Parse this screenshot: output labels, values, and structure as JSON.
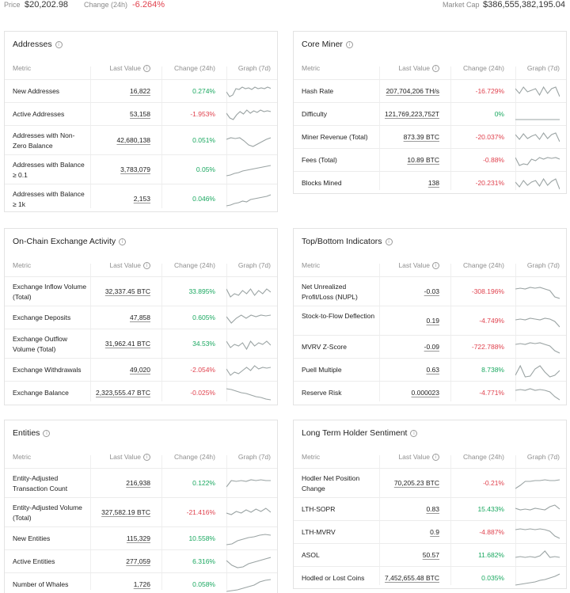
{
  "topbar": {
    "price_label": "Price",
    "price_value": "$20,202.98",
    "change_label": "Change (24h)",
    "change_value": "-6.264%",
    "marketcap_label": "Market Cap",
    "marketcap_value": "$386,555,382,195.04"
  },
  "headers": {
    "metric": "Metric",
    "last_value": "Last Value",
    "change": "Change (24h)",
    "graph": "Graph (7d)"
  },
  "colors": {
    "positive": "#1aa860",
    "negative": "#e0424e",
    "spark": "#9aa3a3"
  },
  "cards": {
    "addresses": {
      "title": "Addresses",
      "rows": [
        {
          "metric": "New Addresses",
          "value": "16,822",
          "change": "0.274%",
          "dir": "pos",
          "spark": "a1"
        },
        {
          "metric": "Active Addresses",
          "value": "53,158",
          "change": "-1.953%",
          "dir": "neg",
          "spark": "a2"
        },
        {
          "metric": "Addresses with Non-Zero Balance",
          "value": "42,680,138",
          "change": "0.051%",
          "dir": "pos",
          "spark": "a3"
        },
        {
          "metric": "Addresses with Balance ≥ 0.1",
          "value": "3,783,079",
          "change": "0.05%",
          "dir": "pos",
          "spark": "a4"
        },
        {
          "metric": "Addresses with Balance ≥ 1k",
          "value": "2,153",
          "change": "0.046%",
          "dir": "pos",
          "spark": "a5"
        }
      ]
    },
    "core_miner": {
      "title": "Core Miner",
      "rows": [
        {
          "metric": "Hash Rate",
          "value": "207,704,206 TH/s",
          "change": "-16.729%",
          "dir": "neg",
          "spark": "b1"
        },
        {
          "metric": "Difficulty",
          "value": "121,769,223,752T",
          "change": "0%",
          "dir": "pos",
          "spark": "b2"
        },
        {
          "metric": "Miner Revenue (Total)",
          "value": "873.39 BTC",
          "change": "-20.037%",
          "dir": "neg",
          "spark": "b3"
        },
        {
          "metric": "Fees (Total)",
          "value": "10.89 BTC",
          "change": "-0.88%",
          "dir": "neg",
          "spark": "b4"
        },
        {
          "metric": "Blocks Mined",
          "value": "138",
          "change": "-20.231%",
          "dir": "neg",
          "spark": "b5"
        }
      ]
    },
    "exchange": {
      "title": "On-Chain Exchange Activity",
      "rows": [
        {
          "metric": "Exchange Inflow Volume (Total)",
          "value": "32,337.45 BTC",
          "change": "33.895%",
          "dir": "pos",
          "spark": "c1"
        },
        {
          "metric": "Exchange Deposits",
          "value": "47,858",
          "change": "0.605%",
          "dir": "pos",
          "spark": "c2"
        },
        {
          "metric": "Exchange Outflow Volume (Total)",
          "value": "31,962.41 BTC",
          "change": "34.53%",
          "dir": "pos",
          "spark": "c3"
        },
        {
          "metric": "Exchange Withdrawals",
          "value": "49,020",
          "change": "-2.054%",
          "dir": "neg",
          "spark": "c4"
        },
        {
          "metric": "Exchange Balance",
          "value": "2,323,555.47 BTC",
          "change": "-0.025%",
          "dir": "neg",
          "spark": "c5"
        }
      ]
    },
    "indicators": {
      "title": "Top/Bottom Indicators",
      "rows": [
        {
          "metric": "Net Unrealized Profit/Loss (NUPL)",
          "value": "-0.03",
          "change": "-308.196%",
          "dir": "neg",
          "spark": "d1"
        },
        {
          "metric": "Stock-to-Flow Deflection",
          "value": "0.19",
          "change": "-4.749%",
          "dir": "neg",
          "spark": "d2"
        },
        {
          "metric": "MVRV Z-Score",
          "value": "-0.09",
          "change": "-722.788%",
          "dir": "neg",
          "spark": "d3"
        },
        {
          "metric": "Puell Multiple",
          "value": "0.63",
          "change": "8.738%",
          "dir": "pos",
          "spark": "d4"
        },
        {
          "metric": "Reserve Risk",
          "value": "0.000023",
          "change": "-4.771%",
          "dir": "neg",
          "spark": "d5"
        }
      ]
    },
    "entities": {
      "title": "Entities",
      "rows": [
        {
          "metric": "Entity-Adjusted Transaction Count",
          "value": "216,938",
          "change": "0.122%",
          "dir": "pos",
          "spark": "e1"
        },
        {
          "metric": "Entity-Adjusted Volume (Total)",
          "value": "327,582.19 BTC",
          "change": "-21.416%",
          "dir": "neg",
          "spark": "e2"
        },
        {
          "metric": "New Entities",
          "value": "115,329",
          "change": "10.558%",
          "dir": "pos",
          "spark": "e3"
        },
        {
          "metric": "Active Entities",
          "value": "277,059",
          "change": "6.316%",
          "dir": "pos",
          "spark": "e4"
        },
        {
          "metric": "Number of Whales",
          "value": "1,726",
          "change": "0.058%",
          "dir": "pos",
          "spark": "e5"
        }
      ]
    },
    "lth": {
      "title": "Long Term Holder Sentiment",
      "rows": [
        {
          "metric": "Hodler Net Position Change",
          "value": "70,205.23 BTC",
          "change": "-0.21%",
          "dir": "neg",
          "spark": "f1"
        },
        {
          "metric": "LTH-SOPR",
          "value": "0.83",
          "change": "15.433%",
          "dir": "pos",
          "spark": "f2"
        },
        {
          "metric": "LTH-MVRV",
          "value": "0.9",
          "change": "-4.887%",
          "dir": "neg",
          "spark": "f3"
        },
        {
          "metric": "ASOL",
          "value": "50.57",
          "change": "11.682%",
          "dir": "pos",
          "spark": "f4"
        },
        {
          "metric": "Hodled or Lost Coins",
          "value": "7,452,655.48 BTC",
          "change": "0.035%",
          "dir": "pos",
          "spark": "f5"
        }
      ]
    }
  }
}
